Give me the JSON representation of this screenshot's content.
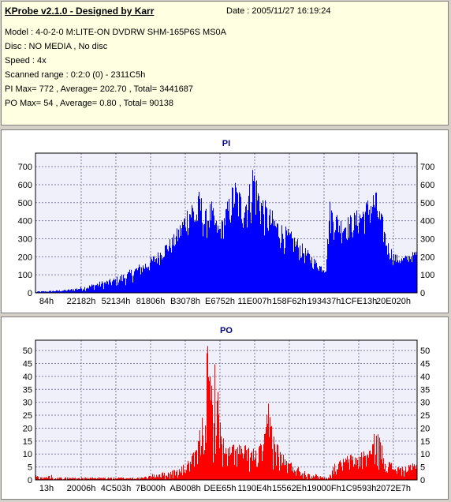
{
  "info": {
    "title": "KProbe v2.1.0 - Designed by Karr",
    "date": "Date : 2005/11/27 16:19:24",
    "model": "Model : 4-0-2-0 M:LITE-ON DVDRW SHM-165P6S MS0A",
    "disc": "Disc : NO MEDIA , No disc",
    "speed": "Speed : 4x",
    "scanned_range": "Scanned range : 0:2:0 (0) - 2311C5h",
    "pi_summary": "PI Max= 772 , Average= 202.70 , Total= 3441687",
    "po_summary": "PO Max= 54 , Average= 0.80 , Total= 90138"
  },
  "colors": {
    "pi": "#0000ff",
    "po": "#ff0000",
    "plot_bg": "#f0f0fa",
    "grid": "#8080a0",
    "title": "#000080"
  },
  "chart_data": [
    {
      "type": "area",
      "title": "PI",
      "ylim": [
        0,
        775
      ],
      "yticks": [
        0,
        100,
        200,
        300,
        400,
        500,
        600,
        700
      ],
      "xtick_labels": [
        "84h",
        "22182h",
        "52134h",
        "81806h",
        "B3078h",
        "E6752h",
        "11E007h",
        "158F62h",
        "193437h",
        "1CFE13h",
        "20E020h"
      ],
      "grid": true,
      "envelope": {
        "x": [
          0,
          0.02,
          0.04,
          0.06,
          0.08,
          0.1,
          0.12,
          0.14,
          0.16,
          0.18,
          0.2,
          0.22,
          0.24,
          0.26,
          0.28,
          0.3,
          0.32,
          0.34,
          0.36,
          0.38,
          0.4,
          0.41,
          0.42,
          0.43,
          0.44,
          0.45,
          0.46,
          0.47,
          0.48,
          0.49,
          0.5,
          0.51,
          0.52,
          0.53,
          0.54,
          0.55,
          0.56,
          0.57,
          0.575,
          0.58,
          0.59,
          0.6,
          0.61,
          0.62,
          0.64,
          0.66,
          0.68,
          0.7,
          0.72,
          0.74,
          0.76,
          0.77,
          0.78,
          0.785,
          0.79,
          0.8,
          0.82,
          0.84,
          0.86,
          0.88,
          0.89,
          0.9,
          0.91,
          0.92,
          0.94,
          0.96,
          0.98,
          1.0
        ],
        "y": [
          8,
          10,
          12,
          15,
          18,
          25,
          35,
          45,
          60,
          70,
          80,
          100,
          120,
          150,
          170,
          200,
          230,
          280,
          320,
          400,
          500,
          540,
          480,
          600,
          450,
          480,
          520,
          420,
          380,
          420,
          500,
          560,
          650,
          600,
          560,
          580,
          620,
          760,
          720,
          640,
          580,
          520,
          480,
          460,
          400,
          360,
          320,
          270,
          220,
          170,
          140,
          520,
          470,
          460,
          450,
          420,
          430,
          460,
          500,
          560,
          590,
          480,
          420,
          300,
          220,
          200,
          220,
          240
        ],
        "floor": [
          0,
          2,
          3,
          4,
          5,
          6,
          8,
          10,
          14,
          18,
          22,
          30,
          40,
          60,
          80,
          100,
          140,
          180,
          200,
          240,
          300,
          280,
          260,
          300,
          280,
          280,
          300,
          280,
          260,
          280,
          300,
          320,
          340,
          320,
          300,
          300,
          320,
          360,
          340,
          320,
          300,
          280,
          260,
          240,
          220,
          200,
          180,
          150,
          130,
          110,
          100,
          300,
          280,
          280,
          270,
          260,
          270,
          280,
          300,
          320,
          320,
          280,
          240,
          180,
          140,
          140,
          160,
          170
        ]
      }
    },
    {
      "type": "area",
      "title": "PO",
      "ylim": [
        0,
        54
      ],
      "yticks": [
        0,
        5,
        10,
        15,
        20,
        25,
        30,
        35,
        40,
        45,
        50
      ],
      "xtick_labels": [
        "13h",
        "20006h",
        "4C503h",
        "7B000h",
        "AB008h",
        "DEE65h",
        "1190E4h",
        "15562Eh",
        "19000Fh",
        "1C9593h",
        "2072E7h"
      ],
      "grid": true,
      "envelope": {
        "x": [
          0,
          0.02,
          0.04,
          0.06,
          0.08,
          0.1,
          0.12,
          0.14,
          0.16,
          0.18,
          0.2,
          0.22,
          0.24,
          0.26,
          0.28,
          0.3,
          0.32,
          0.34,
          0.36,
          0.38,
          0.4,
          0.42,
          0.43,
          0.44,
          0.45,
          0.46,
          0.47,
          0.48,
          0.49,
          0.5,
          0.51,
          0.52,
          0.54,
          0.56,
          0.58,
          0.6,
          0.61,
          0.62,
          0.63,
          0.64,
          0.66,
          0.68,
          0.7,
          0.72,
          0.74,
          0.76,
          0.77,
          0.78,
          0.8,
          0.82,
          0.84,
          0.86,
          0.88,
          0.89,
          0.9,
          0.91,
          0.92,
          0.94,
          0.96,
          0.98,
          1.0
        ],
        "y": [
          2,
          1,
          2,
          1,
          1,
          1,
          1,
          1,
          1,
          1,
          1,
          1,
          1,
          1,
          1,
          2,
          3,
          3,
          4,
          5,
          8,
          12,
          20,
          30,
          54,
          40,
          48,
          30,
          18,
          12,
          14,
          15,
          14,
          13,
          12,
          18,
          32,
          22,
          16,
          12,
          8,
          6,
          4,
          3,
          2,
          1,
          2,
          6,
          8,
          10,
          10,
          12,
          14,
          20,
          18,
          12,
          8,
          6,
          5,
          6,
          7
        ],
        "floor": [
          0,
          0,
          0,
          0,
          0,
          0,
          0,
          0,
          0,
          0,
          0,
          0,
          0,
          0,
          0,
          0,
          0,
          0,
          0,
          0,
          1,
          2,
          3,
          4,
          6,
          5,
          5,
          4,
          3,
          2,
          2,
          3,
          3,
          2,
          2,
          3,
          4,
          3,
          2,
          2,
          1,
          1,
          0,
          0,
          0,
          0,
          0,
          1,
          2,
          2,
          2,
          2,
          3,
          3,
          3,
          2,
          2,
          1,
          1,
          1,
          1
        ]
      }
    }
  ]
}
